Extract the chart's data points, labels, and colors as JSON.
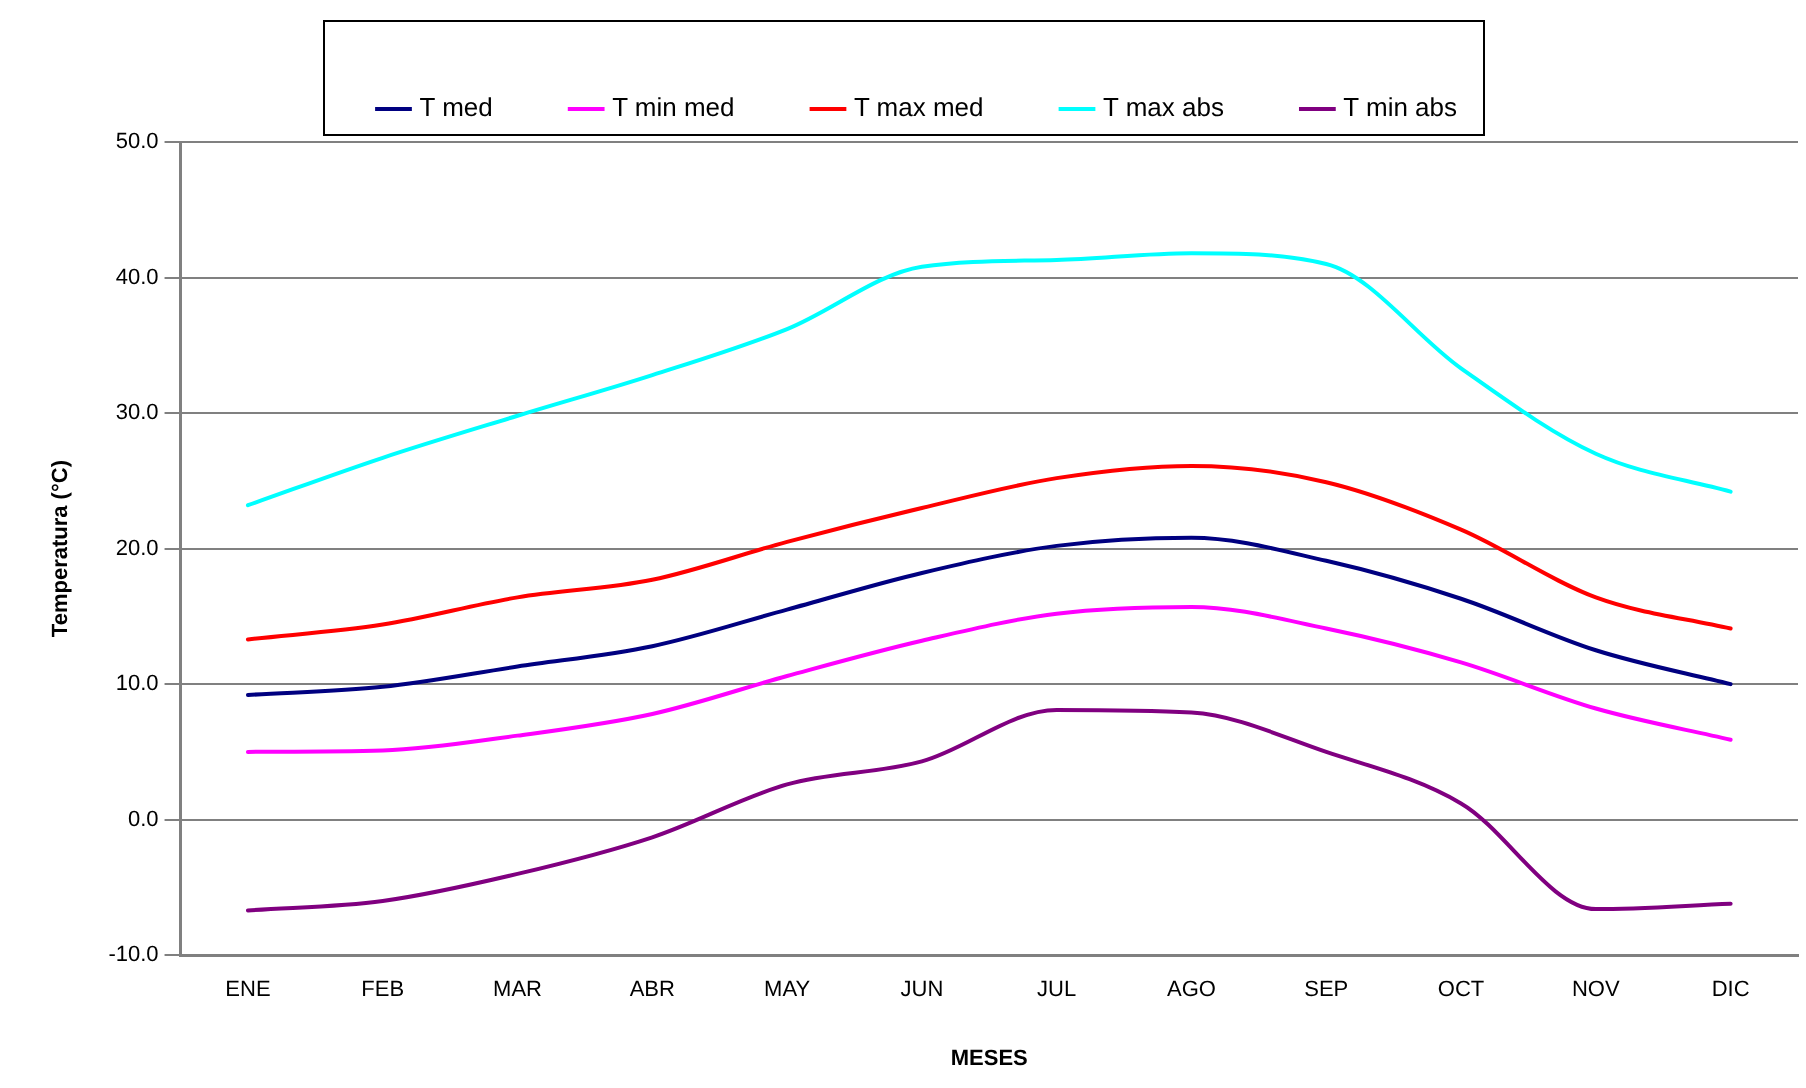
{
  "chart_data": {
    "type": "line",
    "xlabel": "MESES",
    "ylabel": "Temperatura (°C)",
    "categories": [
      "ENE",
      "FEB",
      "MAR",
      "ABR",
      "MAY",
      "JUN",
      "JUL",
      "AGO",
      "SEP",
      "OCT",
      "NOV",
      "DIC"
    ],
    "series": [
      {
        "name": "T med",
        "color": "#000080",
        "values": [
          9.2,
          9.8,
          11.3,
          12.8,
          15.5,
          18.2,
          20.2,
          20.8,
          19.1,
          16.3,
          12.5,
          10.0
        ]
      },
      {
        "name": "T min med",
        "color": "#ff00ff",
        "values": [
          5.0,
          5.1,
          6.2,
          7.8,
          10.6,
          13.2,
          15.2,
          15.7,
          14.1,
          11.6,
          8.2,
          5.9
        ]
      },
      {
        "name": "T max med",
        "color": "#ff0000",
        "values": [
          13.3,
          14.4,
          16.4,
          17.7,
          20.5,
          23.0,
          25.2,
          26.1,
          24.9,
          21.4,
          16.4,
          14.1
        ]
      },
      {
        "name": "T max abs",
        "color": "#00ffff",
        "values": [
          23.2,
          26.7,
          29.8,
          32.8,
          36.2,
          40.8,
          41.3,
          41.8,
          41.0,
          33.3,
          27.0,
          24.2
        ]
      },
      {
        "name": "T min abs",
        "color": "#800080",
        "values": [
          -6.7,
          -6.0,
          -4.0,
          -1.3,
          2.6,
          4.3,
          8.1,
          7.9,
          5.0,
          1.2,
          -6.6,
          -6.2
        ]
      }
    ],
    "ylim": [
      -10,
      50
    ],
    "yticks": [
      {
        "value": -10,
        "label": "-10.0"
      },
      {
        "value": 0,
        "label": "0.0"
      },
      {
        "value": 10,
        "label": "10.0"
      },
      {
        "value": 20,
        "label": "20.0"
      },
      {
        "value": 30,
        "label": "30.0"
      },
      {
        "value": 40,
        "label": "40.0"
      },
      {
        "value": 50,
        "label": "50.0"
      }
    ],
    "grid": "y",
    "legend": "top",
    "marker": "none",
    "line_style": "solid"
  }
}
